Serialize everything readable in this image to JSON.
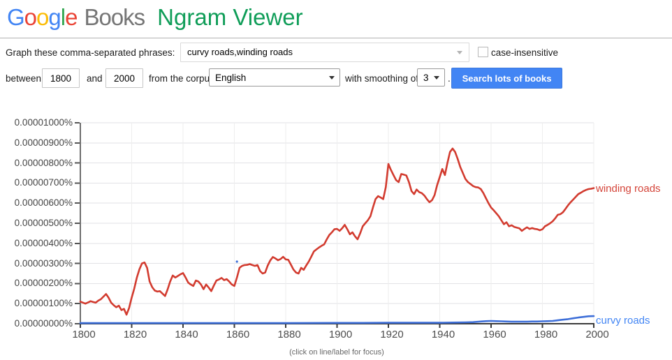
{
  "header": {
    "logo_letters": [
      {
        "ch": "G",
        "color": "#4285f4"
      },
      {
        "ch": "o",
        "color": "#ea4335"
      },
      {
        "ch": "o",
        "color": "#fbbc05"
      },
      {
        "ch": "g",
        "color": "#4285f4"
      },
      {
        "ch": "l",
        "color": "#34a853"
      },
      {
        "ch": "e",
        "color": "#ea4335"
      }
    ],
    "books_label": "Books",
    "app_title": "Ngram Viewer"
  },
  "query_row": {
    "label": "Graph these comma-separated phrases:",
    "input_value": "curvy roads,winding roads",
    "case_label": "case-insensitive",
    "case_checked": false
  },
  "controls_row": {
    "between_label": "between",
    "from_year": "1800",
    "and_label": "and",
    "to_year": "2000",
    "corpus_label": "from the corpus",
    "corpus_value": "English",
    "smoothing_label": "with smoothing of",
    "smoothing_value": "3",
    "period": ".",
    "search_button_label": "Search lots of books"
  },
  "footer": {
    "caption": "(click on line/label for focus)"
  },
  "colors": {
    "accent_blue": "#4285f4",
    "title_green": "#0f9d58",
    "books_gray": "#757575",
    "winding_red": "#d23b2f",
    "curvy_blue": "#3e6fd8",
    "grid_h": "#e2e2e6",
    "grid_v": "#eeeeee",
    "axis_x": "#3b3b3b",
    "axis_y": "#6e6e6e"
  },
  "chart_data": {
    "type": "line",
    "title": "",
    "xlabel": "",
    "ylabel": "",
    "grid": true,
    "legend_position": "line-end-right",
    "xlim": [
      1800,
      2000
    ],
    "x_ticks": [
      1800,
      1820,
      1840,
      1860,
      1880,
      1900,
      1920,
      1940,
      1960,
      1980,
      2000
    ],
    "value_unit": "1e-6 percent",
    "ylim": [
      0,
      10
    ],
    "y_tick_labels": [
      "0.00000000%",
      "0.00000100%",
      "0.00000200%",
      "0.00000300%",
      "0.00000400%",
      "0.00000500%",
      "0.00000600%",
      "0.00000700%",
      "0.00000800%",
      "0.00000900%",
      "0.00001000%"
    ],
    "stray_point": {
      "year": 1861,
      "value": 3.09,
      "color": "#3e6fd8"
    },
    "series": [
      {
        "name": "winding roads",
        "color": "#d23b2f",
        "label_color": "#d4453a",
        "label_dy": -8,
        "points": [
          [
            1800,
            1.1
          ],
          [
            1801,
            1.05
          ],
          [
            1802,
            1.0
          ],
          [
            1803,
            1.06
          ],
          [
            1804,
            1.12
          ],
          [
            1805,
            1.08
          ],
          [
            1806,
            1.05
          ],
          [
            1807,
            1.15
          ],
          [
            1808,
            1.22
          ],
          [
            1809,
            1.35
          ],
          [
            1810,
            1.48
          ],
          [
            1811,
            1.3
          ],
          [
            1812,
            1.05
          ],
          [
            1813,
            0.92
          ],
          [
            1814,
            0.82
          ],
          [
            1815,
            0.9
          ],
          [
            1816,
            0.68
          ],
          [
            1817,
            0.74
          ],
          [
            1818,
            0.45
          ],
          [
            1819,
            0.78
          ],
          [
            1820,
            1.3
          ],
          [
            1821,
            1.75
          ],
          [
            1822,
            2.28
          ],
          [
            1823,
            2.7
          ],
          [
            1824,
            3.0
          ],
          [
            1825,
            3.05
          ],
          [
            1826,
            2.78
          ],
          [
            1827,
            2.1
          ],
          [
            1828,
            1.82
          ],
          [
            1829,
            1.65
          ],
          [
            1830,
            1.6
          ],
          [
            1831,
            1.62
          ],
          [
            1832,
            1.5
          ],
          [
            1833,
            1.38
          ],
          [
            1834,
            1.7
          ],
          [
            1835,
            2.1
          ],
          [
            1836,
            2.4
          ],
          [
            1837,
            2.3
          ],
          [
            1838,
            2.38
          ],
          [
            1839,
            2.46
          ],
          [
            1840,
            2.52
          ],
          [
            1841,
            2.3
          ],
          [
            1842,
            2.05
          ],
          [
            1843,
            1.95
          ],
          [
            1844,
            1.88
          ],
          [
            1845,
            2.15
          ],
          [
            1846,
            2.1
          ],
          [
            1847,
            1.95
          ],
          [
            1848,
            1.72
          ],
          [
            1849,
            1.95
          ],
          [
            1850,
            1.8
          ],
          [
            1851,
            1.62
          ],
          [
            1852,
            1.9
          ],
          [
            1853,
            2.15
          ],
          [
            1854,
            2.2
          ],
          [
            1855,
            2.28
          ],
          [
            1856,
            2.17
          ],
          [
            1857,
            2.22
          ],
          [
            1858,
            2.1
          ],
          [
            1859,
            1.95
          ],
          [
            1860,
            1.88
          ],
          [
            1861,
            2.3
          ],
          [
            1862,
            2.78
          ],
          [
            1863,
            2.88
          ],
          [
            1864,
            2.92
          ],
          [
            1865,
            2.93
          ],
          [
            1866,
            2.97
          ],
          [
            1867,
            2.92
          ],
          [
            1868,
            2.88
          ],
          [
            1869,
            2.92
          ],
          [
            1870,
            2.62
          ],
          [
            1871,
            2.5
          ],
          [
            1872,
            2.55
          ],
          [
            1873,
            2.9
          ],
          [
            1874,
            3.15
          ],
          [
            1875,
            3.32
          ],
          [
            1876,
            3.25
          ],
          [
            1877,
            3.16
          ],
          [
            1878,
            3.22
          ],
          [
            1879,
            3.33
          ],
          [
            1880,
            3.2
          ],
          [
            1881,
            3.18
          ],
          [
            1882,
            2.95
          ],
          [
            1883,
            2.7
          ],
          [
            1884,
            2.55
          ],
          [
            1885,
            2.5
          ],
          [
            1886,
            2.78
          ],
          [
            1887,
            2.68
          ],
          [
            1888,
            2.9
          ],
          [
            1889,
            3.1
          ],
          [
            1890,
            3.35
          ],
          [
            1891,
            3.6
          ],
          [
            1892,
            3.7
          ],
          [
            1893,
            3.8
          ],
          [
            1894,
            3.88
          ],
          [
            1895,
            3.95
          ],
          [
            1896,
            4.2
          ],
          [
            1897,
            4.42
          ],
          [
            1898,
            4.55
          ],
          [
            1899,
            4.7
          ],
          [
            1900,
            4.72
          ],
          [
            1901,
            4.62
          ],
          [
            1902,
            4.75
          ],
          [
            1903,
            4.92
          ],
          [
            1904,
            4.7
          ],
          [
            1905,
            4.45
          ],
          [
            1906,
            4.55
          ],
          [
            1907,
            4.35
          ],
          [
            1908,
            4.2
          ],
          [
            1909,
            4.5
          ],
          [
            1910,
            4.85
          ],
          [
            1911,
            5.0
          ],
          [
            1912,
            5.15
          ],
          [
            1913,
            5.35
          ],
          [
            1914,
            5.8
          ],
          [
            1915,
            6.2
          ],
          [
            1916,
            6.35
          ],
          [
            1917,
            6.28
          ],
          [
            1918,
            6.2
          ],
          [
            1919,
            6.8
          ],
          [
            1920,
            7.95
          ],
          [
            1921,
            7.65
          ],
          [
            1922,
            7.4
          ],
          [
            1923,
            7.15
          ],
          [
            1924,
            7.05
          ],
          [
            1925,
            7.45
          ],
          [
            1926,
            7.42
          ],
          [
            1927,
            7.38
          ],
          [
            1928,
            7.05
          ],
          [
            1929,
            6.6
          ],
          [
            1930,
            6.45
          ],
          [
            1931,
            6.68
          ],
          [
            1932,
            6.55
          ],
          [
            1933,
            6.5
          ],
          [
            1934,
            6.38
          ],
          [
            1935,
            6.2
          ],
          [
            1936,
            6.05
          ],
          [
            1937,
            6.15
          ],
          [
            1938,
            6.4
          ],
          [
            1939,
            6.9
          ],
          [
            1940,
            7.3
          ],
          [
            1941,
            7.7
          ],
          [
            1942,
            7.4
          ],
          [
            1943,
            8.0
          ],
          [
            1944,
            8.55
          ],
          [
            1945,
            8.72
          ],
          [
            1946,
            8.55
          ],
          [
            1947,
            8.2
          ],
          [
            1948,
            7.8
          ],
          [
            1949,
            7.5
          ],
          [
            1950,
            7.2
          ],
          [
            1951,
            7.05
          ],
          [
            1952,
            6.95
          ],
          [
            1953,
            6.85
          ],
          [
            1954,
            6.8
          ],
          [
            1955,
            6.78
          ],
          [
            1956,
            6.7
          ],
          [
            1957,
            6.5
          ],
          [
            1958,
            6.25
          ],
          [
            1959,
            6.0
          ],
          [
            1960,
            5.78
          ],
          [
            1961,
            5.65
          ],
          [
            1962,
            5.5
          ],
          [
            1963,
            5.35
          ],
          [
            1964,
            5.15
          ],
          [
            1965,
            4.95
          ],
          [
            1966,
            5.05
          ],
          [
            1967,
            4.85
          ],
          [
            1968,
            4.9
          ],
          [
            1969,
            4.82
          ],
          [
            1970,
            4.78
          ],
          [
            1971,
            4.75
          ],
          [
            1972,
            4.62
          ],
          [
            1973,
            4.72
          ],
          [
            1974,
            4.8
          ],
          [
            1975,
            4.72
          ],
          [
            1976,
            4.76
          ],
          [
            1977,
            4.72
          ],
          [
            1978,
            4.7
          ],
          [
            1979,
            4.65
          ],
          [
            1980,
            4.7
          ],
          [
            1981,
            4.85
          ],
          [
            1982,
            4.92
          ],
          [
            1983,
            5.0
          ],
          [
            1984,
            5.1
          ],
          [
            1985,
            5.25
          ],
          [
            1986,
            5.42
          ],
          [
            1987,
            5.45
          ],
          [
            1988,
            5.55
          ],
          [
            1989,
            5.72
          ],
          [
            1990,
            5.9
          ],
          [
            1991,
            6.05
          ],
          [
            1992,
            6.18
          ],
          [
            1993,
            6.32
          ],
          [
            1994,
            6.45
          ],
          [
            1995,
            6.52
          ],
          [
            1996,
            6.6
          ],
          [
            1997,
            6.66
          ],
          [
            1998,
            6.7
          ],
          [
            1999,
            6.72
          ],
          [
            2000,
            6.75
          ]
        ]
      },
      {
        "name": "curvy roads",
        "color": "#3e6fd8",
        "label_color": "#4285f4",
        "label_dy": -2,
        "points": [
          [
            1800,
            0.03
          ],
          [
            1820,
            0.03
          ],
          [
            1840,
            0.03
          ],
          [
            1860,
            0.03
          ],
          [
            1880,
            0.03
          ],
          [
            1900,
            0.04
          ],
          [
            1910,
            0.04
          ],
          [
            1920,
            0.05
          ],
          [
            1930,
            0.05
          ],
          [
            1940,
            0.05
          ],
          [
            1945,
            0.06
          ],
          [
            1950,
            0.07
          ],
          [
            1953,
            0.08
          ],
          [
            1956,
            0.11
          ],
          [
            1958,
            0.13
          ],
          [
            1960,
            0.14
          ],
          [
            1962,
            0.13
          ],
          [
            1964,
            0.12
          ],
          [
            1966,
            0.11
          ],
          [
            1968,
            0.1
          ],
          [
            1970,
            0.1
          ],
          [
            1972,
            0.1
          ],
          [
            1974,
            0.1
          ],
          [
            1976,
            0.11
          ],
          [
            1978,
            0.11
          ],
          [
            1980,
            0.12
          ],
          [
            1982,
            0.13
          ],
          [
            1984,
            0.14
          ],
          [
            1986,
            0.17
          ],
          [
            1988,
            0.2
          ],
          [
            1990,
            0.23
          ],
          [
            1992,
            0.27
          ],
          [
            1994,
            0.31
          ],
          [
            1996,
            0.34
          ],
          [
            1998,
            0.37
          ],
          [
            2000,
            0.38
          ]
        ]
      }
    ]
  }
}
